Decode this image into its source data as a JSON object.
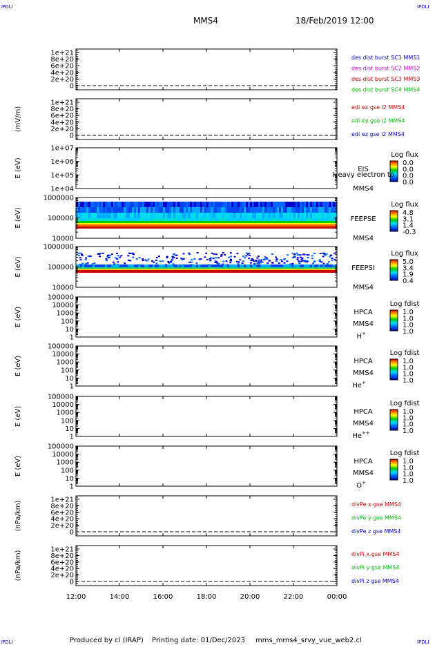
{
  "header": {
    "corner_left_top": "IPDLI",
    "corner_right_top": "IPDLI",
    "corner_left_bottom": "IPDLI",
    "corner_right_bottom": "IPDLI",
    "spacecraft": "MMS4",
    "datetime": "18/Feb/2019 12:00"
  },
  "footer": {
    "produced_by": "Produced by cl (IRAP)",
    "printing_date": "Printing date: 01/Dec/2023",
    "filename": "mms_mms4_srvy_vue_web2.cl"
  },
  "chart_data": {
    "type": "stacked-timeseries",
    "x_ticks": [
      "12:00",
      "14:00",
      "16:00",
      "18:00",
      "20:00",
      "22:00",
      "00:00"
    ],
    "panels": [
      {
        "id": "p1",
        "kind": "line",
        "ylabel": "",
        "yticks": [
          "1e+21",
          "8e+20",
          "6e+20",
          "4e+20",
          "2e+20",
          "0"
        ],
        "legend": [
          {
            "text": "des dist burst SC1 MMS1",
            "color": "#0000cc"
          },
          {
            "text": "des dist burst SC2 MMS2",
            "color": "#cc00cc"
          },
          {
            "text": "des dist burst SC3 MMS3",
            "color": "#cc0000"
          },
          {
            "text": "des dist burst SC4 MMS4",
            "color": "#00bb00"
          }
        ]
      },
      {
        "id": "p2",
        "kind": "line",
        "ylabel": "(mV/m)",
        "yticks": [
          "1e+21",
          "8e+20",
          "6e+20",
          "4e+20",
          "2e+20",
          "0"
        ],
        "legend": [
          {
            "text": "edi ex gse l2 MMS4",
            "color": "#cc0000"
          },
          {
            "text": "edi ey gse l2 MMS4",
            "color": "#00bb00"
          },
          {
            "text": "edi ez gse l2 MMS4",
            "color": "#0000cc"
          }
        ]
      },
      {
        "id": "p3",
        "kind": "spectrogram",
        "ylabel": "E (eV)",
        "yticks": [
          "1e+07",
          "1e+06",
          "1e+05",
          "1e+04"
        ],
        "name": [
          "EIS",
          "MMS4"
        ],
        "overlay": "Heavy electron to",
        "cbar_title": "Log flux",
        "cbar_values": [
          "0.0",
          "0.0",
          "0.0",
          "0.0"
        ]
      },
      {
        "id": "p4",
        "kind": "spectrogram",
        "ylabel": "E (eV)",
        "yticks": [
          "1000000",
          "100000",
          "10000"
        ],
        "name": [
          "FEEPSE",
          "MMS4"
        ],
        "cbar_title": "Log flux",
        "cbar_values": [
          "4.8",
          "3.1",
          "1.4",
          "-0.3"
        ]
      },
      {
        "id": "p5",
        "kind": "spectrogram",
        "ylabel": "E (eV)",
        "yticks": [
          "1000000",
          "100000",
          "10000"
        ],
        "name": [
          "FEEPSI",
          "MMS4"
        ],
        "cbar_title": "Log flux",
        "cbar_values": [
          "5.0",
          "3.4",
          "1.9",
          "0.4"
        ]
      },
      {
        "id": "p6",
        "kind": "spectrogram",
        "ylabel": "E (eV)",
        "yticks": [
          "100000",
          "10000",
          "1000",
          "100",
          "10",
          "1"
        ],
        "name": [
          "HPCA",
          "MMS4"
        ],
        "species": "H",
        "species_sup": "+",
        "cbar_title": "Log fdist",
        "cbar_values": [
          "1.0",
          "1.0",
          "1.0",
          "1.0"
        ]
      },
      {
        "id": "p7",
        "kind": "spectrogram",
        "ylabel": "E (eV)",
        "yticks": [
          "100000",
          "10000",
          "1000",
          "100",
          "10",
          "1"
        ],
        "name": [
          "HPCA",
          "MMS4"
        ],
        "species": "He",
        "species_sup": "+",
        "cbar_title": "Log fdist",
        "cbar_values": [
          "1.0",
          "1.0",
          "1.0",
          "1.0"
        ]
      },
      {
        "id": "p8",
        "kind": "spectrogram",
        "ylabel": "E (eV)",
        "yticks": [
          "100000",
          "10000",
          "1000",
          "100",
          "10",
          "1"
        ],
        "name": [
          "HPCA",
          "MMS4"
        ],
        "species": "He",
        "species_sup": "++",
        "cbar_title": "Log fdist",
        "cbar_values": [
          "1.0",
          "1.0",
          "1.0",
          "1.0"
        ]
      },
      {
        "id": "p9",
        "kind": "spectrogram",
        "ylabel": "E (eV)",
        "yticks": [
          "100000",
          "10000",
          "1000",
          "100",
          "10",
          "1"
        ],
        "name": [
          "HPCA",
          "MMS4"
        ],
        "species": "O",
        "species_sup": "+",
        "cbar_title": "Log fdist",
        "cbar_values": [
          "1.0",
          "1.0",
          "1.0",
          "1.0"
        ]
      },
      {
        "id": "p10",
        "kind": "line",
        "ylabel": "(nPa/km)",
        "yticks": [
          "1e+21",
          "8e+20",
          "6e+20",
          "4e+20",
          "2e+20",
          "0"
        ],
        "legend": [
          {
            "text": "divPe x gse MMS4",
            "color": "#cc0000"
          },
          {
            "text": "divPe y gse MMS4",
            "color": "#00bb00"
          },
          {
            "text": "divPe z gse MMS4",
            "color": "#0000cc"
          }
        ]
      },
      {
        "id": "p11",
        "kind": "line",
        "ylabel": "(nPa/km)",
        "yticks": [
          "1e+21",
          "8e+20",
          "6e+20",
          "4e+20",
          "2e+20",
          "0"
        ],
        "legend": [
          {
            "text": "divPi x gse MMS4",
            "color": "#cc0000"
          },
          {
            "text": "divPi y gse MMS4",
            "color": "#00bb00"
          },
          {
            "text": "divPi z gse MMS4",
            "color": "#0000cc"
          }
        ]
      }
    ]
  }
}
